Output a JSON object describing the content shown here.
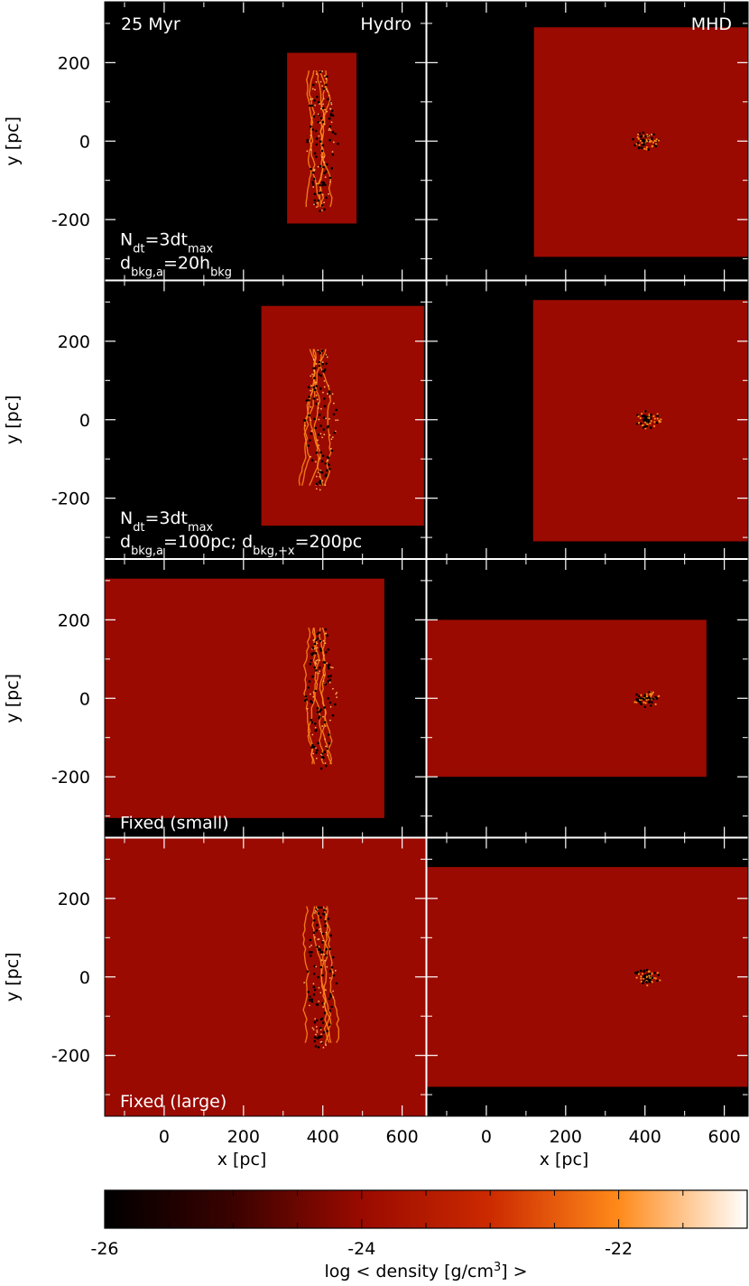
{
  "chart_data": {
    "type": "heatmap",
    "layout": "4 rows x 2 columns of density projection panels sharing axes",
    "xlabel": "x [pc]",
    "ylabel": "y [pc]",
    "xlim": [
      -150,
      660
    ],
    "ylim": [
      -355,
      355
    ],
    "x_ticks": [
      0,
      200,
      400,
      600
    ],
    "y_ticks": [
      200,
      0,
      -200
    ],
    "x_tick_labels": [
      "0",
      "200",
      "400",
      "600"
    ],
    "y_tick_labels": [
      "200",
      "0",
      "-200"
    ],
    "time_label": "25 Myr",
    "column_labels": [
      "Hydro",
      "MHD"
    ],
    "background_color": "#000000",
    "region_color": "#9a0a00",
    "gas_color": "#ff8a1a",
    "rows": [
      {
        "label_lines": [
          {
            "segments": [
              {
                "t": "N"
              },
              {
                "t": "dt",
                "sub": true
              },
              {
                "t": "=3dt"
              },
              {
                "t": "max",
                "sub": true
              }
            ]
          },
          {
            "segments": [
              {
                "t": "d"
              },
              {
                "t": "bkg,a",
                "sub": true
              },
              {
                "t": "=20h"
              },
              {
                "t": "bkg",
                "sub": true
              }
            ]
          }
        ],
        "hydro_region": {
          "x": [
            310,
            485
          ],
          "y": [
            -210,
            225
          ]
        },
        "mhd_region": {
          "x": [
            120,
            660
          ],
          "y": [
            -295,
            290
          ]
        }
      },
      {
        "label_lines": [
          {
            "segments": [
              {
                "t": "N"
              },
              {
                "t": "dt",
                "sub": true
              },
              {
                "t": "=3dt"
              },
              {
                "t": "max",
                "sub": true
              }
            ]
          },
          {
            "segments": [
              {
                "t": "d"
              },
              {
                "t": "bkg,a",
                "sub": true
              },
              {
                "t": "=100pc; d"
              },
              {
                "t": "bkg,+x",
                "sub": true
              },
              {
                "t": "=200pc"
              }
            ]
          }
        ],
        "hydro_region": {
          "x": [
            245,
            655
          ],
          "y": [
            -270,
            290
          ]
        },
        "mhd_region": {
          "x": [
            118,
            660
          ],
          "y": [
            -310,
            305
          ]
        }
      },
      {
        "label_lines": [
          {
            "segments": [
              {
                "t": "Fixed (small)"
              }
            ]
          }
        ],
        "hydro_region": {
          "x": [
            -150,
            555
          ],
          "y": [
            -305,
            305
          ]
        },
        "mhd_region": {
          "x": [
            -150,
            555
          ],
          "y": [
            -200,
            200
          ]
        }
      },
      {
        "label_lines": [
          {
            "segments": [
              {
                "t": "Fixed (large)"
              }
            ]
          }
        ],
        "hydro_region": {
          "x": [
            -150,
            660
          ],
          "y": [
            -355,
            355
          ]
        },
        "mhd_region": {
          "x": [
            -150,
            660
          ],
          "y": [
            -280,
            280
          ]
        }
      }
    ],
    "colorbar": {
      "label_parts": [
        {
          "t": "log < density [g/cm"
        },
        {
          "t": "3",
          "sup": true
        },
        {
          "t": "] >"
        }
      ],
      "range": [
        -26,
        -21
      ],
      "ticks": [
        -26,
        -24,
        -22
      ],
      "tick_labels": [
        "-26",
        "-24",
        "-22"
      ],
      "stops": [
        {
          "value": -26,
          "color": "#000000"
        },
        {
          "value": -25,
          "color": "#3a0200"
        },
        {
          "value": -24,
          "color": "#9a0a00"
        },
        {
          "value": -23,
          "color": "#cc2a00"
        },
        {
          "value": -22,
          "color": "#ff8a1a"
        },
        {
          "value": -21,
          "color": "#ffffff"
        }
      ]
    }
  }
}
